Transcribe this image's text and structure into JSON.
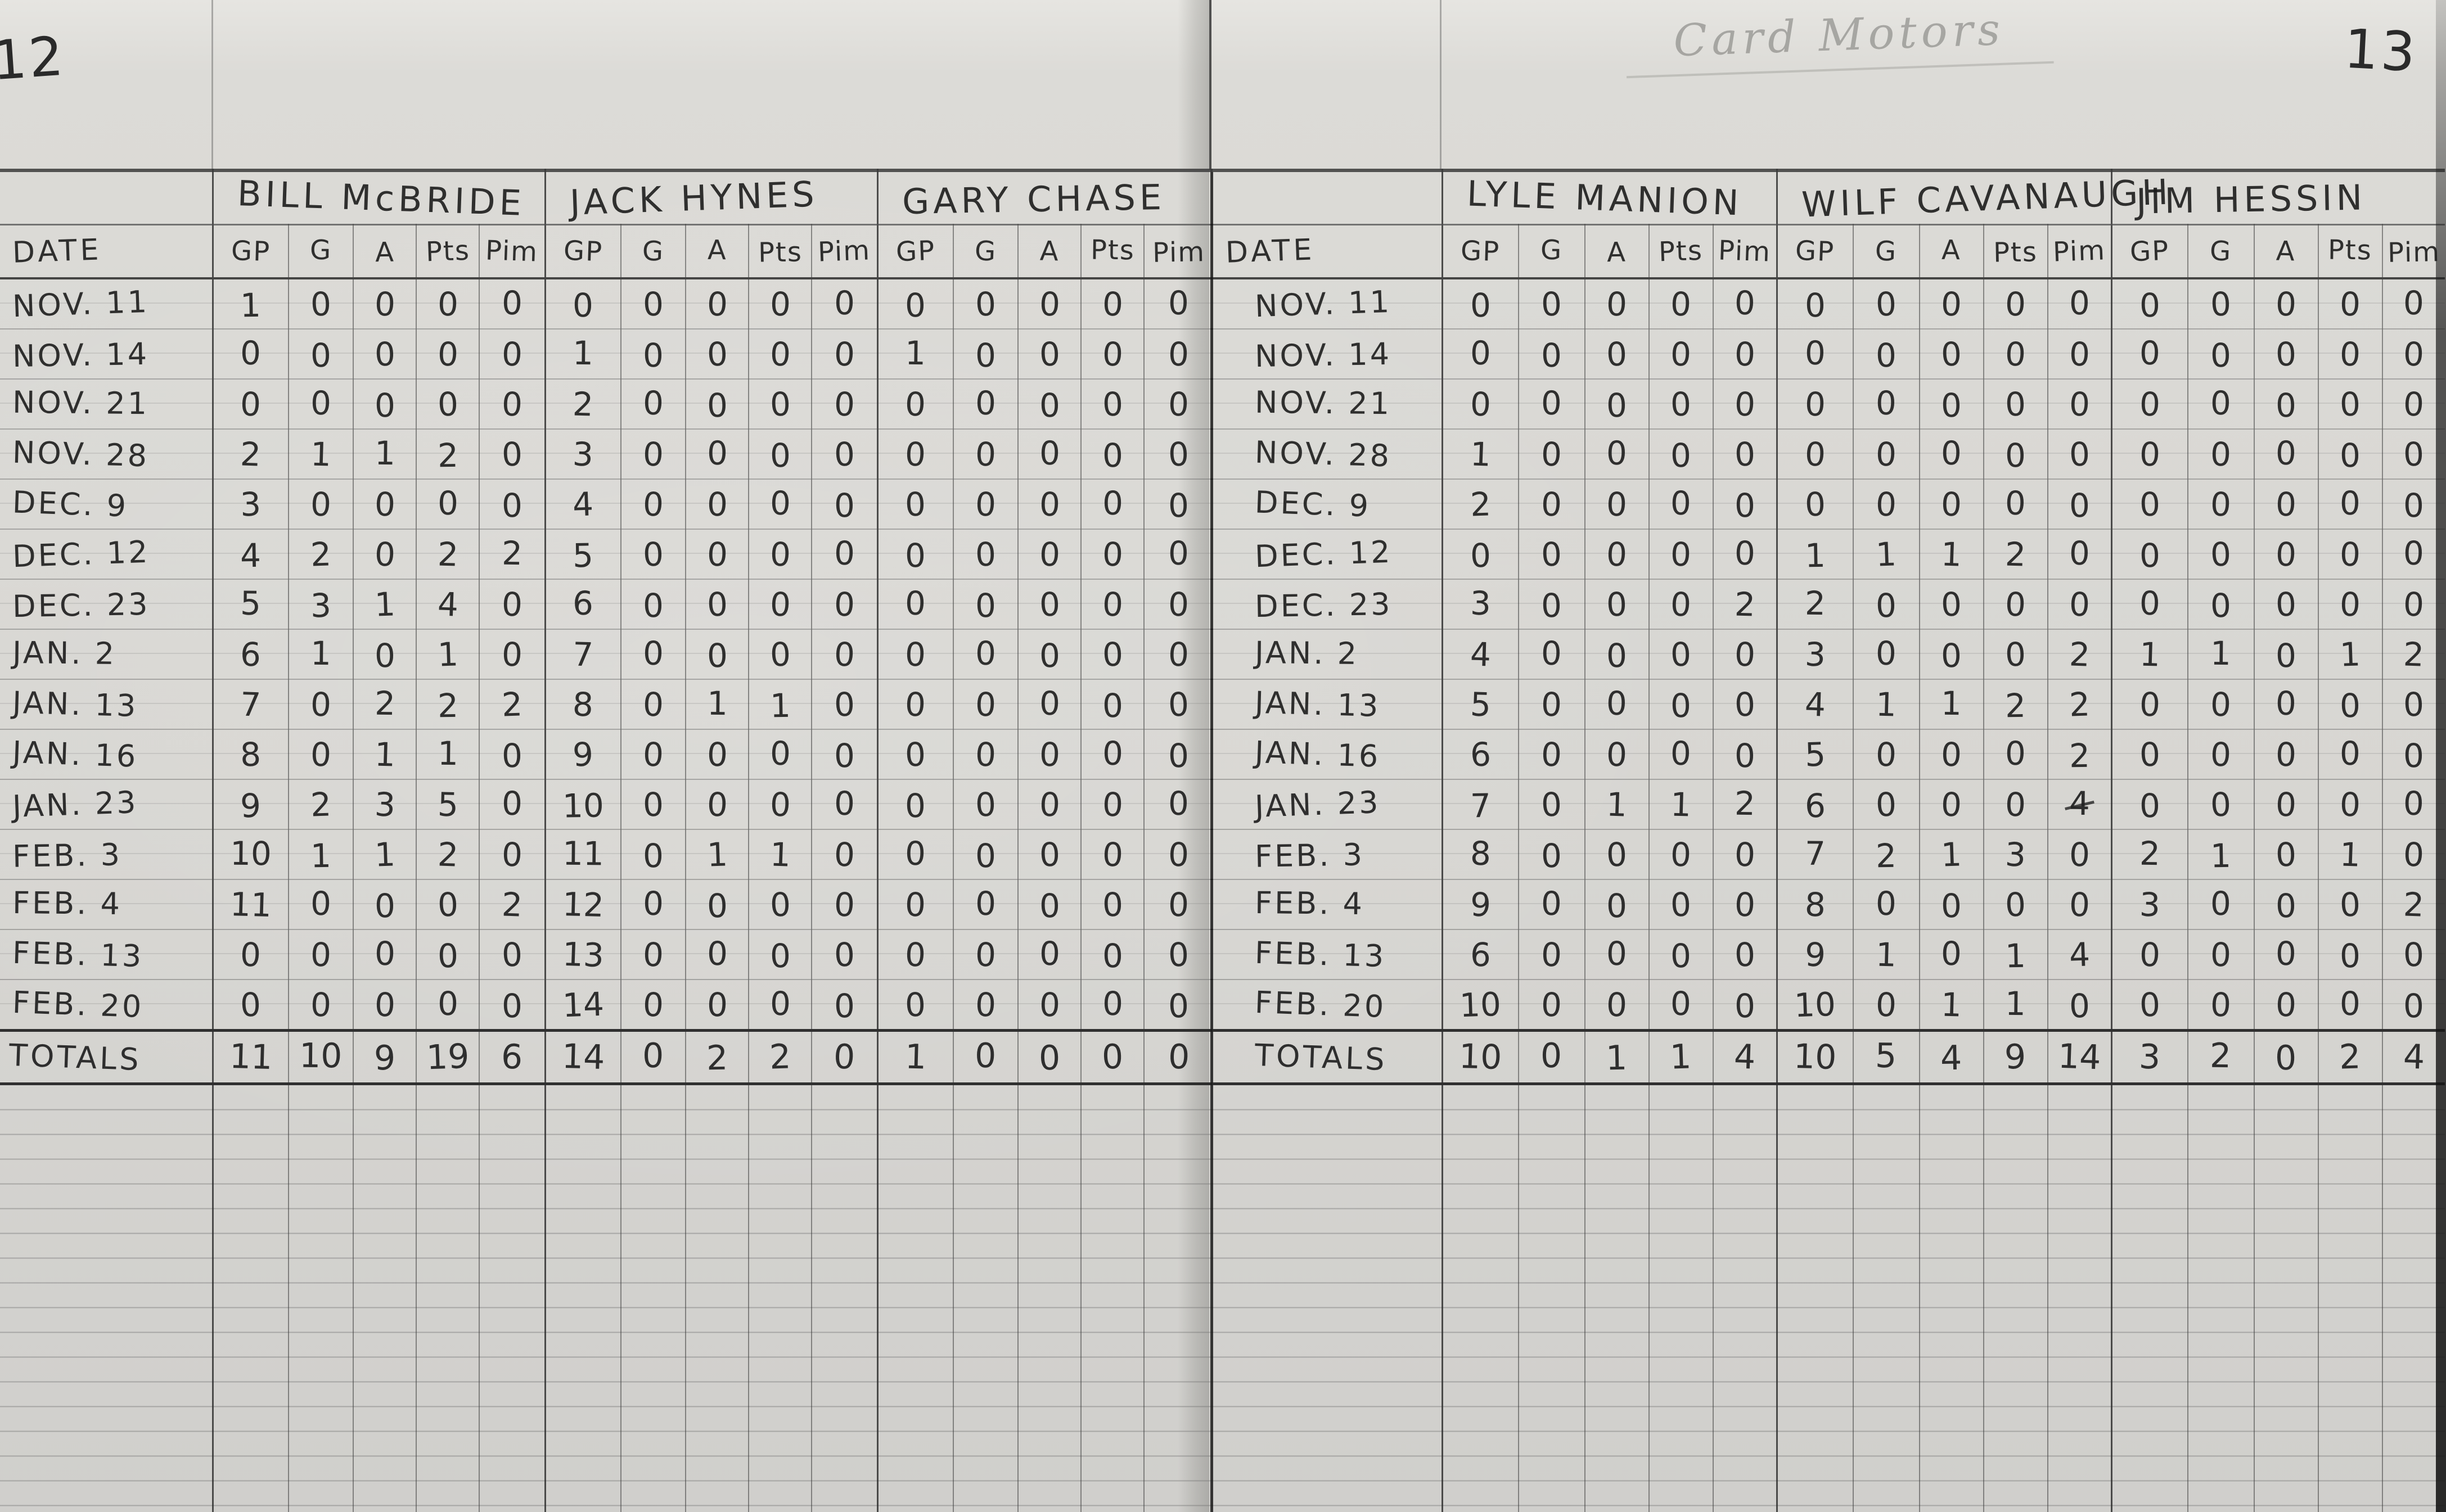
{
  "page": {
    "left_page_number": "12",
    "right_page_number": "13",
    "top_note": "Card Motors"
  },
  "columns": {
    "date_label": "DATE",
    "stat_labels": [
      "GP",
      "G",
      "A",
      "Pts",
      "Pim"
    ],
    "totals_label": "TOTALS"
  },
  "left_table": {
    "players": [
      "BILL McBRIDE",
      "JACK HYNES",
      "GARY CHASE"
    ],
    "rows": [
      {
        "date": "NOV. 11",
        "stats": [
          [
            "1",
            "0",
            "0",
            "0",
            "0"
          ],
          [
            "0",
            "0",
            "0",
            "0",
            "0"
          ],
          [
            "0",
            "0",
            "0",
            "0",
            "0"
          ]
        ]
      },
      {
        "date": "NOV. 14",
        "stats": [
          [
            "0",
            "0",
            "0",
            "0",
            "0"
          ],
          [
            "1",
            "0",
            "0",
            "0",
            "0"
          ],
          [
            "1",
            "0",
            "0",
            "0",
            "0"
          ]
        ]
      },
      {
        "date": "NOV. 21",
        "stats": [
          [
            "0",
            "0",
            "0",
            "0",
            "0"
          ],
          [
            "2",
            "0",
            "0",
            "0",
            "0"
          ],
          [
            "0",
            "0",
            "0",
            "0",
            "0"
          ]
        ]
      },
      {
        "date": "NOV. 28",
        "stats": [
          [
            "2",
            "1",
            "1",
            "2",
            "0"
          ],
          [
            "3",
            "0",
            "0",
            "0",
            "0"
          ],
          [
            "0",
            "0",
            "0",
            "0",
            "0"
          ]
        ]
      },
      {
        "date": "DEC. 9",
        "stats": [
          [
            "3",
            "0",
            "0",
            "0",
            "0"
          ],
          [
            "4",
            "0",
            "0",
            "0",
            "0"
          ],
          [
            "0",
            "0",
            "0",
            "0",
            "0"
          ]
        ]
      },
      {
        "date": "DEC. 12",
        "stats": [
          [
            "4",
            "2",
            "0",
            "2",
            "2"
          ],
          [
            "5",
            "0",
            "0",
            "0",
            "0"
          ],
          [
            "0",
            "0",
            "0",
            "0",
            "0"
          ]
        ]
      },
      {
        "date": "DEC. 23",
        "stats": [
          [
            "5",
            "3",
            "1",
            "4",
            "0"
          ],
          [
            "6",
            "0",
            "0",
            "0",
            "0"
          ],
          [
            "0",
            "0",
            "0",
            "0",
            "0"
          ]
        ]
      },
      {
        "date": "JAN. 2",
        "stats": [
          [
            "6",
            "1",
            "0",
            "1",
            "0"
          ],
          [
            "7",
            "0",
            "0",
            "0",
            "0"
          ],
          [
            "0",
            "0",
            "0",
            "0",
            "0"
          ]
        ]
      },
      {
        "date": "JAN. 13",
        "stats": [
          [
            "7",
            "0",
            "2",
            "2",
            "2"
          ],
          [
            "8",
            "0",
            "1",
            "1",
            "0"
          ],
          [
            "0",
            "0",
            "0",
            "0",
            "0"
          ]
        ]
      },
      {
        "date": "JAN. 16",
        "stats": [
          [
            "8",
            "0",
            "1",
            "1",
            "0"
          ],
          [
            "9",
            "0",
            "0",
            "0",
            "0"
          ],
          [
            "0",
            "0",
            "0",
            "0",
            "0"
          ]
        ]
      },
      {
        "date": "JAN. 23",
        "stats": [
          [
            "9",
            "2",
            "3",
            "5",
            "0"
          ],
          [
            "10",
            "0",
            "0",
            "0",
            "0"
          ],
          [
            "0",
            "0",
            "0",
            "0",
            "0"
          ]
        ]
      },
      {
        "date": "FEB. 3",
        "stats": [
          [
            "10",
            "1",
            "1",
            "2",
            "0"
          ],
          [
            "11",
            "0",
            "1",
            "1",
            "0"
          ],
          [
            "0",
            "0",
            "0",
            "0",
            "0"
          ]
        ]
      },
      {
        "date": "FEB. 4",
        "stats": [
          [
            "11",
            "0",
            "0",
            "0",
            "2"
          ],
          [
            "12",
            "0",
            "0",
            "0",
            "0"
          ],
          [
            "0",
            "0",
            "0",
            "0",
            "0"
          ]
        ]
      },
      {
        "date": "FEB. 13",
        "stats": [
          [
            "0",
            "0",
            "0",
            "0",
            "0"
          ],
          [
            "13",
            "0",
            "0",
            "0",
            "0"
          ],
          [
            "0",
            "0",
            "0",
            "0",
            "0"
          ]
        ]
      },
      {
        "date": "FEB. 20",
        "stats": [
          [
            "0",
            "0",
            "0",
            "0",
            "0"
          ],
          [
            "14",
            "0",
            "0",
            "0",
            "0"
          ],
          [
            "0",
            "0",
            "0",
            "0",
            "0"
          ]
        ]
      }
    ],
    "totals": [
      [
        "11",
        "10",
        "9",
        "19",
        "6"
      ],
      [
        "14",
        "0",
        "2",
        "2",
        "0"
      ],
      [
        "1",
        "0",
        "0",
        "0",
        "0"
      ]
    ],
    "struck": []
  },
  "right_table": {
    "players": [
      "LYLE MANION",
      "WILF CAVANAUGH",
      "JIM HESSIN"
    ],
    "rows": [
      {
        "date": "NOV. 11",
        "stats": [
          [
            "0",
            "0",
            "0",
            "0",
            "0"
          ],
          [
            "0",
            "0",
            "0",
            "0",
            "0"
          ],
          [
            "0",
            "0",
            "0",
            "0",
            "0"
          ]
        ]
      },
      {
        "date": "NOV. 14",
        "stats": [
          [
            "0",
            "0",
            "0",
            "0",
            "0"
          ],
          [
            "0",
            "0",
            "0",
            "0",
            "0"
          ],
          [
            "0",
            "0",
            "0",
            "0",
            "0"
          ]
        ]
      },
      {
        "date": "NOV. 21",
        "stats": [
          [
            "0",
            "0",
            "0",
            "0",
            "0"
          ],
          [
            "0",
            "0",
            "0",
            "0",
            "0"
          ],
          [
            "0",
            "0",
            "0",
            "0",
            "0"
          ]
        ]
      },
      {
        "date": "NOV. 28",
        "stats": [
          [
            "1",
            "0",
            "0",
            "0",
            "0"
          ],
          [
            "0",
            "0",
            "0",
            "0",
            "0"
          ],
          [
            "0",
            "0",
            "0",
            "0",
            "0"
          ]
        ]
      },
      {
        "date": "DEC. 9",
        "stats": [
          [
            "2",
            "0",
            "0",
            "0",
            "0"
          ],
          [
            "0",
            "0",
            "0",
            "0",
            "0"
          ],
          [
            "0",
            "0",
            "0",
            "0",
            "0"
          ]
        ]
      },
      {
        "date": "DEC. 12",
        "stats": [
          [
            "0",
            "0",
            "0",
            "0",
            "0"
          ],
          [
            "1",
            "1",
            "1",
            "2",
            "0"
          ],
          [
            "0",
            "0",
            "0",
            "0",
            "0"
          ]
        ]
      },
      {
        "date": "DEC. 23",
        "stats": [
          [
            "3",
            "0",
            "0",
            "0",
            "2"
          ],
          [
            "2",
            "0",
            "0",
            "0",
            "0"
          ],
          [
            "0",
            "0",
            "0",
            "0",
            "0"
          ]
        ]
      },
      {
        "date": "JAN. 2",
        "stats": [
          [
            "4",
            "0",
            "0",
            "0",
            "0"
          ],
          [
            "3",
            "0",
            "0",
            "0",
            "2"
          ],
          [
            "1",
            "1",
            "0",
            "1",
            "2"
          ]
        ]
      },
      {
        "date": "JAN. 13",
        "stats": [
          [
            "5",
            "0",
            "0",
            "0",
            "0"
          ],
          [
            "4",
            "1",
            "1",
            "2",
            "2"
          ],
          [
            "0",
            "0",
            "0",
            "0",
            "0"
          ]
        ]
      },
      {
        "date": "JAN. 16",
        "stats": [
          [
            "6",
            "0",
            "0",
            "0",
            "0"
          ],
          [
            "5",
            "0",
            "0",
            "0",
            "2"
          ],
          [
            "0",
            "0",
            "0",
            "0",
            "0"
          ]
        ]
      },
      {
        "date": "JAN. 23",
        "stats": [
          [
            "7",
            "0",
            "1",
            "1",
            "2"
          ],
          [
            "6",
            "0",
            "0",
            "0",
            "4"
          ],
          [
            "0",
            "0",
            "0",
            "0",
            "0"
          ]
        ]
      },
      {
        "date": "FEB. 3",
        "stats": [
          [
            "8",
            "0",
            "0",
            "0",
            "0"
          ],
          [
            "7",
            "2",
            "1",
            "3",
            "0"
          ],
          [
            "2",
            "1",
            "0",
            "1",
            "0"
          ]
        ]
      },
      {
        "date": "FEB. 4",
        "stats": [
          [
            "9",
            "0",
            "0",
            "0",
            "0"
          ],
          [
            "8",
            "0",
            "0",
            "0",
            "0"
          ],
          [
            "3",
            "0",
            "0",
            "0",
            "2"
          ]
        ]
      },
      {
        "date": "FEB. 13",
        "stats": [
          [
            "6",
            "0",
            "0",
            "0",
            "0"
          ],
          [
            "9",
            "1",
            "0",
            "1",
            "4"
          ],
          [
            "0",
            "0",
            "0",
            "0",
            "0"
          ]
        ]
      },
      {
        "date": "FEB. 20",
        "stats": [
          [
            "10",
            "0",
            "0",
            "0",
            "0"
          ],
          [
            "10",
            "0",
            "1",
            "1",
            "0"
          ],
          [
            "0",
            "0",
            "0",
            "0",
            "0"
          ]
        ]
      }
    ],
    "totals": [
      [
        "10",
        "0",
        "1",
        "1",
        "4"
      ],
      [
        "10",
        "5",
        "4",
        "9",
        "14"
      ],
      [
        "3",
        "2",
        "0",
        "2",
        "4"
      ]
    ],
    "struck": [
      {
        "row": 10,
        "player": 1,
        "col": 4
      }
    ]
  }
}
